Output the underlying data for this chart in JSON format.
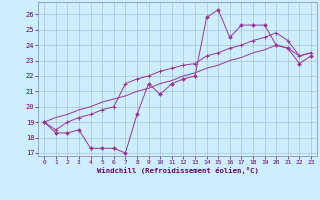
{
  "xlabel": "Windchill (Refroidissement éolien,°C)",
  "bg_color": "#cceeff",
  "line_color": "#993399",
  "grid_color": "#aaaacc",
  "xlim": [
    -0.5,
    23.5
  ],
  "ylim": [
    16.8,
    26.8
  ],
  "yticks": [
    17,
    18,
    19,
    20,
    21,
    22,
    23,
    24,
    25,
    26
  ],
  "xticks": [
    0,
    1,
    2,
    3,
    4,
    5,
    6,
    7,
    8,
    9,
    10,
    11,
    12,
    13,
    14,
    15,
    16,
    17,
    18,
    19,
    20,
    21,
    22,
    23
  ],
  "line1_x": [
    0,
    1,
    2,
    3,
    4,
    5,
    6,
    7,
    8,
    9,
    10,
    11,
    12,
    13,
    14,
    15,
    16,
    17,
    18,
    19,
    20,
    21,
    22,
    23
  ],
  "line1_y": [
    19.0,
    18.3,
    18.3,
    18.5,
    17.3,
    17.3,
    17.3,
    17.0,
    19.5,
    21.5,
    20.8,
    21.5,
    21.8,
    22.0,
    25.8,
    26.3,
    24.5,
    25.3,
    25.3,
    25.3,
    24.0,
    23.8,
    22.8,
    23.3
  ],
  "line2_x": [
    0,
    1,
    2,
    3,
    4,
    5,
    6,
    7,
    8,
    9,
    10,
    11,
    12,
    13,
    14,
    15,
    16,
    17,
    18,
    19,
    20,
    21,
    22,
    23
  ],
  "line2_y": [
    19.0,
    18.5,
    19.0,
    19.3,
    19.5,
    19.8,
    20.0,
    21.5,
    21.8,
    22.0,
    22.3,
    22.5,
    22.7,
    22.8,
    23.3,
    23.5,
    23.8,
    24.0,
    24.3,
    24.5,
    24.8,
    24.3,
    23.3,
    23.5
  ],
  "line3_x": [
    0,
    1,
    2,
    3,
    4,
    5,
    6,
    7,
    8,
    9,
    10,
    11,
    12,
    13,
    14,
    15,
    16,
    17,
    18,
    19,
    20,
    21,
    22,
    23
  ],
  "line3_y": [
    19.0,
    19.3,
    19.5,
    19.8,
    20.0,
    20.3,
    20.5,
    20.7,
    21.0,
    21.2,
    21.5,
    21.7,
    22.0,
    22.2,
    22.5,
    22.7,
    23.0,
    23.2,
    23.5,
    23.7,
    24.0,
    23.8,
    23.3,
    23.5
  ]
}
